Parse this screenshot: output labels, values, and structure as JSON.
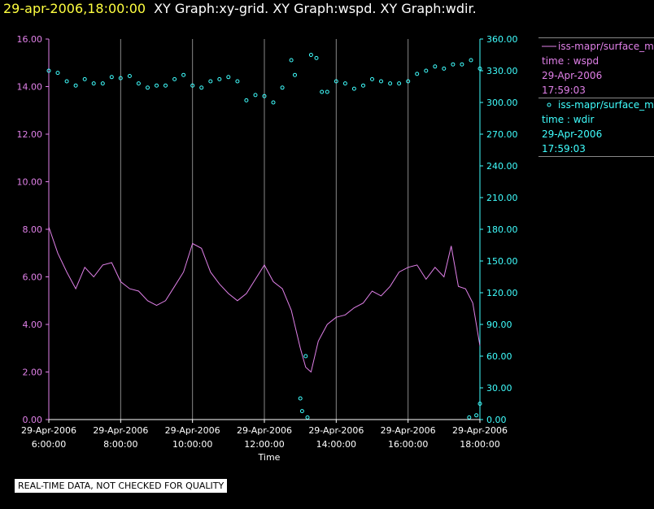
{
  "header": {
    "date": "29-apr-2006,18:00:00",
    "title": "XY Graph:xy-grid.  XY Graph:wspd.  XY Graph:wdir."
  },
  "legend": {
    "wspd": {
      "line1": "iss-mapr/surface_m",
      "line2": "time : wspd",
      "line3": "29-Apr-2006",
      "line4": "17:59:03"
    },
    "wdir": {
      "line1": "iss-mapr/surface_m",
      "line2": "time : wdir",
      "line3": "29-Apr-2006",
      "line4": "17:59:03"
    }
  },
  "quality_note": "REAL-TIME DATA, NOT CHECKED FOR QUALITY",
  "colors": {
    "wspd": "#e080e8",
    "wdir": "#40ffff",
    "date": "#ffff40",
    "grid": "#888888",
    "axis_left": "#e080e8",
    "axis_right": "#40ffff"
  },
  "chart_data": {
    "type": "line",
    "xlabel": "Time",
    "x_ticks": [
      {
        "hour": 6,
        "date": "29-Apr-2006",
        "time": "6:00:00"
      },
      {
        "hour": 8,
        "date": "29-Apr-2006",
        "time": "8:00:00"
      },
      {
        "hour": 10,
        "date": "29-Apr-2006",
        "time": "10:00:00"
      },
      {
        "hour": 12,
        "date": "29-Apr-2006",
        "time": "12:00:00"
      },
      {
        "hour": 14,
        "date": "29-Apr-2006",
        "time": "14:00:00"
      },
      {
        "hour": 16,
        "date": "29-Apr-2006",
        "time": "16:00:00"
      },
      {
        "hour": 18,
        "date": "29-Apr-2006",
        "time": "18:00:00"
      }
    ],
    "xlim_hours": [
      6,
      18
    ],
    "grid": "vertical",
    "left_axis": {
      "ylim": [
        0,
        16
      ],
      "ticks": [
        "0.00",
        "2.00",
        "4.00",
        "6.00",
        "8.00",
        "10.00",
        "12.00",
        "14.00",
        "16.00"
      ]
    },
    "right_axis": {
      "ylim": [
        0,
        360
      ],
      "ticks": [
        "0.00",
        "30.00",
        "60.00",
        "90.00",
        "120.00",
        "150.00",
        "180.00",
        "210.00",
        "240.00",
        "270.00",
        "300.00",
        "330.00",
        "360.00"
      ]
    },
    "series": [
      {
        "name": "wspd",
        "style": "line",
        "axis": "left",
        "points": [
          [
            6.0,
            8.1
          ],
          [
            6.25,
            7.0
          ],
          [
            6.5,
            6.2
          ],
          [
            6.75,
            5.5
          ],
          [
            7.0,
            6.4
          ],
          [
            7.25,
            6.0
          ],
          [
            7.5,
            6.5
          ],
          [
            7.75,
            6.6
          ],
          [
            8.0,
            5.8
          ],
          [
            8.25,
            5.5
          ],
          [
            8.5,
            5.4
          ],
          [
            8.75,
            5.0
          ],
          [
            9.0,
            4.8
          ],
          [
            9.25,
            5.0
          ],
          [
            9.5,
            5.6
          ],
          [
            9.75,
            6.2
          ],
          [
            10.0,
            7.4
          ],
          [
            10.25,
            7.2
          ],
          [
            10.5,
            6.2
          ],
          [
            10.75,
            5.7
          ],
          [
            11.0,
            5.3
          ],
          [
            11.25,
            5.0
          ],
          [
            11.5,
            5.3
          ],
          [
            11.75,
            5.9
          ],
          [
            12.0,
            6.5
          ],
          [
            12.25,
            5.8
          ],
          [
            12.5,
            5.5
          ],
          [
            12.75,
            4.6
          ],
          [
            13.0,
            3.0
          ],
          [
            13.15,
            2.2
          ],
          [
            13.3,
            2.0
          ],
          [
            13.5,
            3.3
          ],
          [
            13.75,
            4.0
          ],
          [
            14.0,
            4.3
          ],
          [
            14.25,
            4.4
          ],
          [
            14.5,
            4.7
          ],
          [
            14.75,
            4.9
          ],
          [
            15.0,
            5.4
          ],
          [
            15.25,
            5.2
          ],
          [
            15.5,
            5.6
          ],
          [
            15.75,
            6.2
          ],
          [
            16.0,
            6.4
          ],
          [
            16.25,
            6.5
          ],
          [
            16.5,
            5.9
          ],
          [
            16.75,
            6.4
          ],
          [
            17.0,
            6.0
          ],
          [
            17.2,
            7.3
          ],
          [
            17.4,
            5.6
          ],
          [
            17.6,
            5.5
          ],
          [
            17.8,
            4.9
          ],
          [
            18.0,
            3.1
          ]
        ]
      },
      {
        "name": "wdir",
        "style": "scatter",
        "axis": "right",
        "points": [
          [
            6.0,
            330
          ],
          [
            6.25,
            328
          ],
          [
            6.5,
            320
          ],
          [
            6.75,
            316
          ],
          [
            7.0,
            322
          ],
          [
            7.25,
            318
          ],
          [
            7.5,
            318
          ],
          [
            7.75,
            324
          ],
          [
            8.0,
            323
          ],
          [
            8.25,
            325
          ],
          [
            8.5,
            318
          ],
          [
            8.75,
            314
          ],
          [
            9.0,
            316
          ],
          [
            9.25,
            316
          ],
          [
            9.5,
            322
          ],
          [
            9.75,
            326
          ],
          [
            10.0,
            316
          ],
          [
            10.25,
            314
          ],
          [
            10.5,
            320
          ],
          [
            10.75,
            322
          ],
          [
            11.0,
            324
          ],
          [
            11.25,
            320
          ],
          [
            11.5,
            302
          ],
          [
            11.75,
            307
          ],
          [
            12.0,
            306
          ],
          [
            12.25,
            300
          ],
          [
            12.5,
            314
          ],
          [
            12.75,
            340
          ],
          [
            12.85,
            326
          ],
          [
            13.0,
            20
          ],
          [
            13.05,
            8
          ],
          [
            13.15,
            60
          ],
          [
            13.2,
            2
          ],
          [
            13.3,
            345
          ],
          [
            13.45,
            342
          ],
          [
            13.6,
            310
          ],
          [
            13.75,
            310
          ],
          [
            14.0,
            320
          ],
          [
            14.25,
            318
          ],
          [
            14.5,
            313
          ],
          [
            14.75,
            316
          ],
          [
            15.0,
            322
          ],
          [
            15.25,
            320
          ],
          [
            15.5,
            318
          ],
          [
            15.75,
            318
          ],
          [
            16.0,
            320
          ],
          [
            16.25,
            327
          ],
          [
            16.5,
            330
          ],
          [
            16.75,
            334
          ],
          [
            17.0,
            332
          ],
          [
            17.25,
            336
          ],
          [
            17.5,
            336
          ],
          [
            17.75,
            340
          ],
          [
            18.0,
            332
          ],
          [
            17.7,
            2
          ],
          [
            17.9,
            4
          ],
          [
            18.0,
            15
          ]
        ]
      }
    ]
  }
}
